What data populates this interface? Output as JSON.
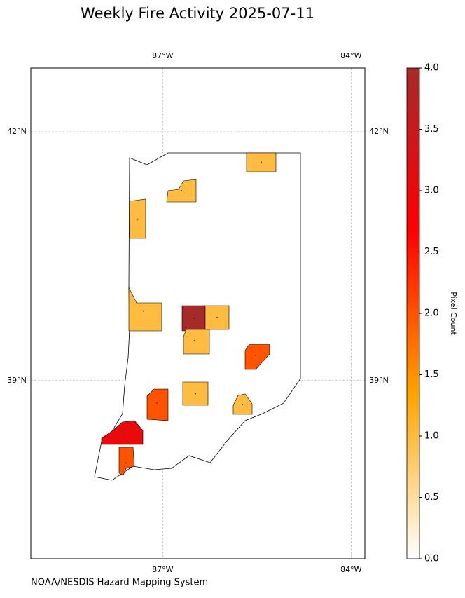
{
  "title": "Weekly Fire Activity 2025-07-11",
  "credit": "NOAA/NESDIS Hazard Mapping System",
  "map": {
    "xlim": [
      -89.1,
      -83.78
    ],
    "ylim": [
      36.85,
      42.77
    ],
    "xticks": [
      {
        "value": -87,
        "label": "87°W"
      },
      {
        "value": -84,
        "label": "84°W"
      }
    ],
    "yticks": [
      {
        "value": 42,
        "label": "42°N"
      },
      {
        "value": 39,
        "label": "39°N"
      }
    ],
    "grid": true,
    "values": [
      1,
      1,
      1,
      1,
      4,
      1,
      1,
      2,
      1,
      1,
      2,
      3,
      2
    ]
  },
  "colorbar": {
    "label": "Pixel Count",
    "lim": [
      0,
      4
    ],
    "colors": [
      "#ffffff",
      "#ffa500",
      "#ff0000",
      "#a52a2a"
    ],
    "ticks": [
      {
        "value": 0,
        "label": "0.0"
      },
      {
        "value": 0.5,
        "label": "0.5"
      },
      {
        "value": 1,
        "label": "1.0"
      },
      {
        "value": 1.5,
        "label": "1.5"
      },
      {
        "value": 2,
        "label": "2.0"
      },
      {
        "value": 2.5,
        "label": "2.5"
      },
      {
        "value": 3,
        "label": "3.0"
      },
      {
        "value": 3.5,
        "label": "3.5"
      },
      {
        "value": 4,
        "label": "4.0"
      }
    ]
  }
}
